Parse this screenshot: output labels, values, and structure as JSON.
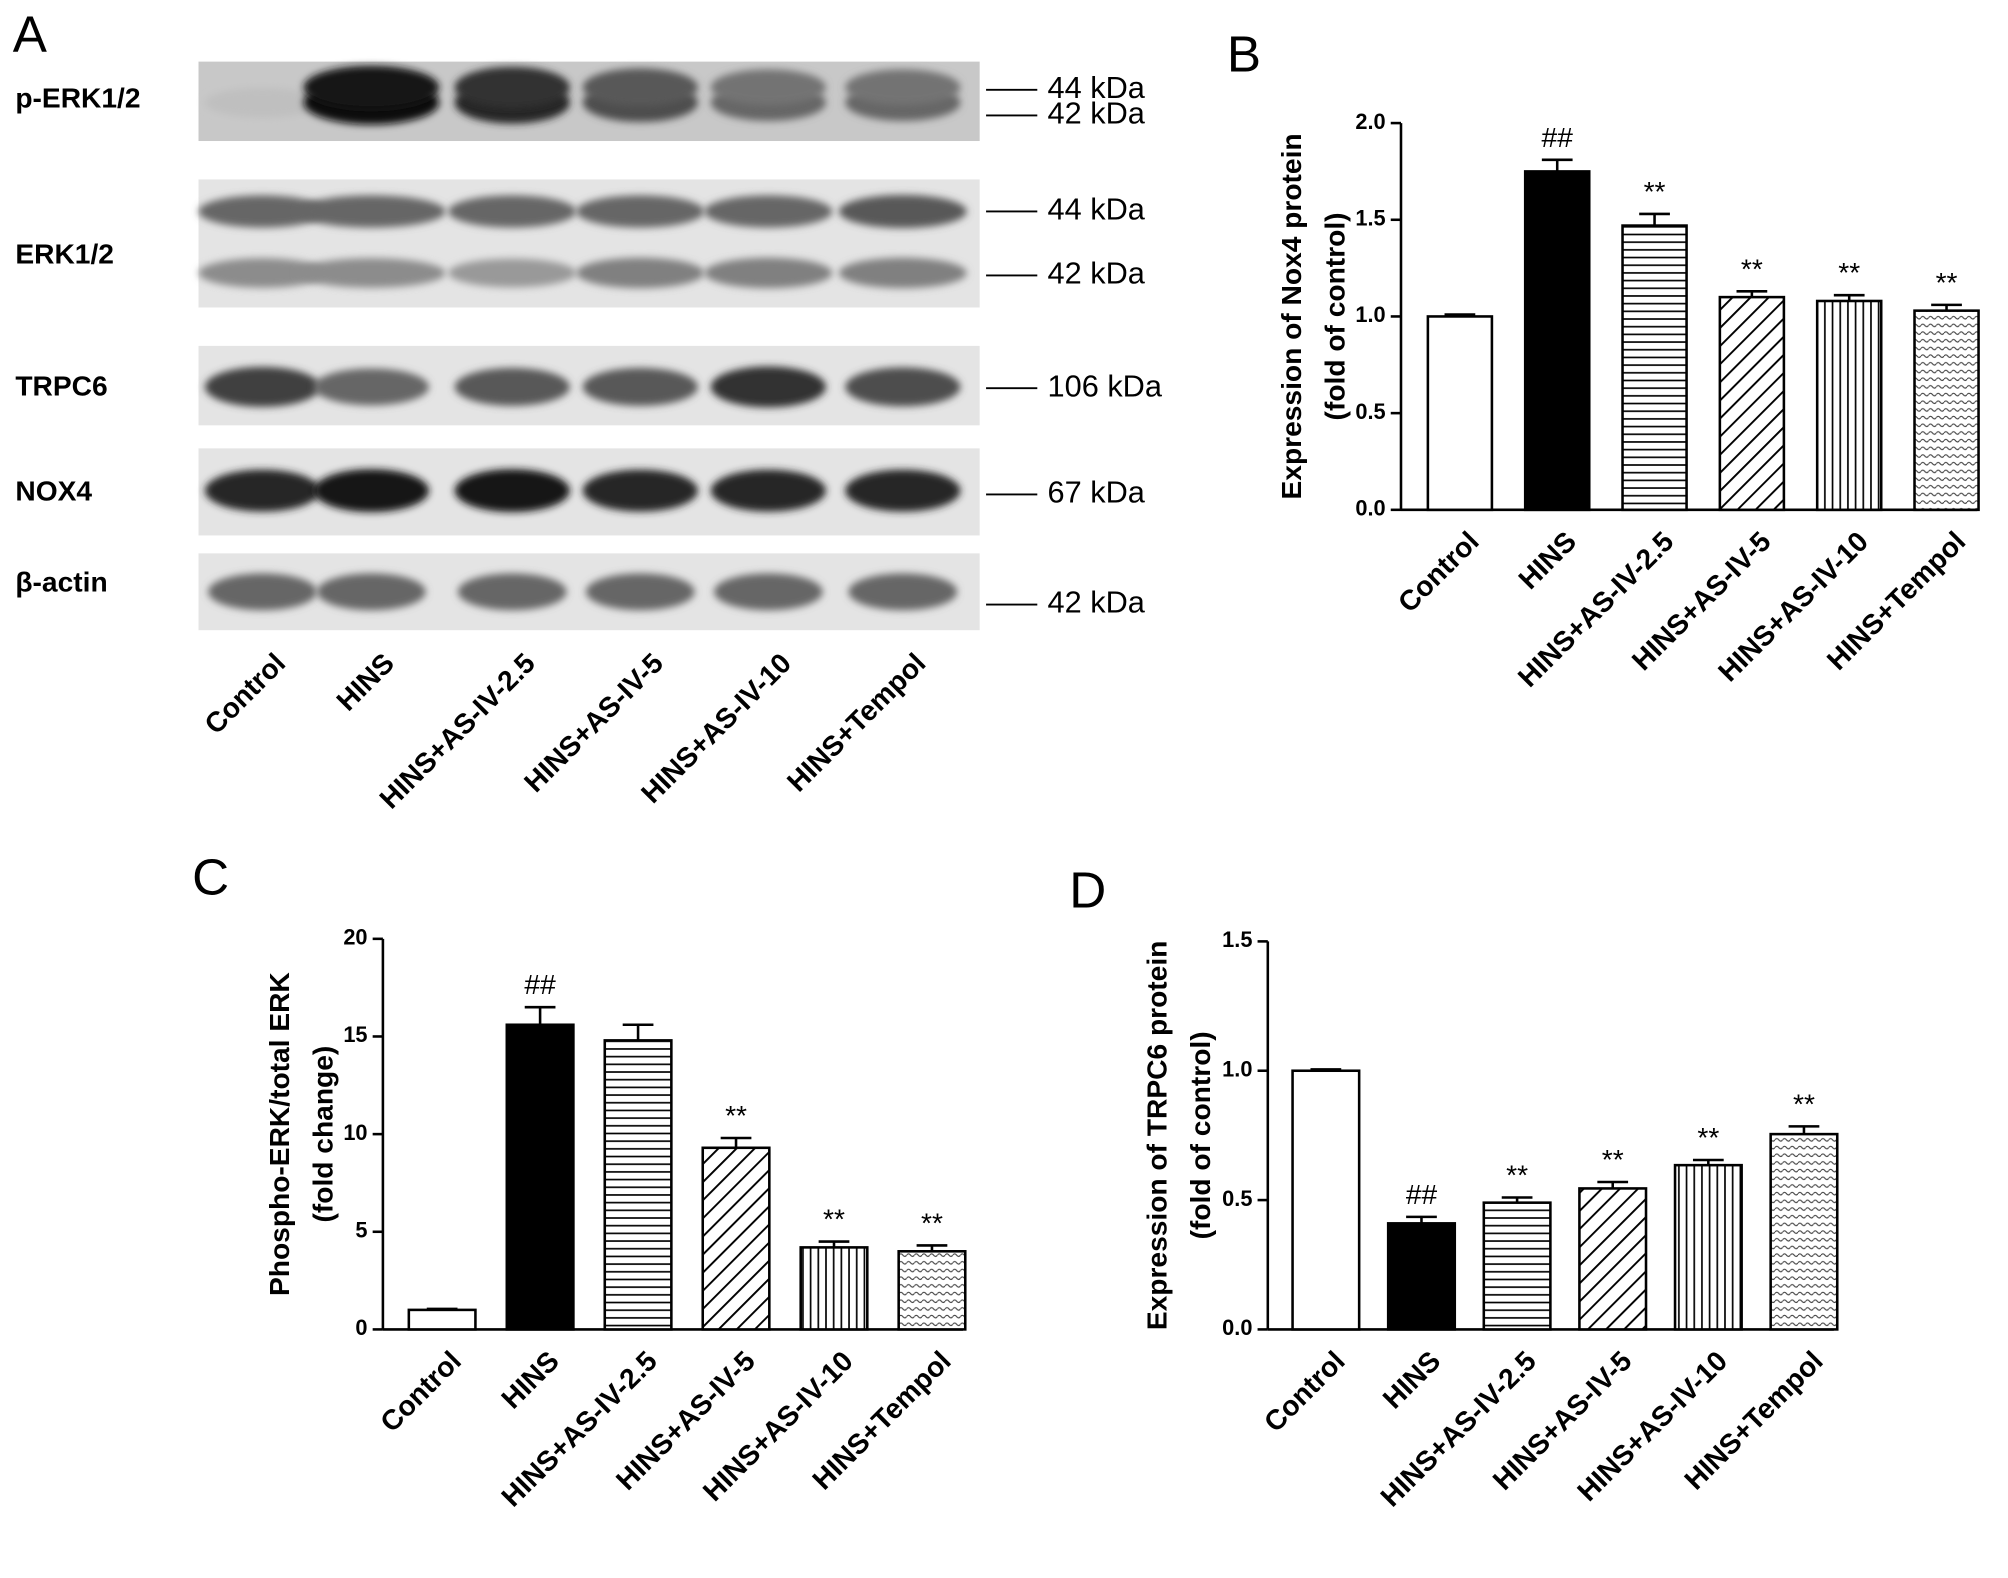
{
  "blot": {
    "panel": "A",
    "rows": [
      {
        "label": "p-ERK1/2",
        "markers": [
          "44 kDa",
          "42 kDa"
        ]
      },
      {
        "label": "ERK1/2",
        "markers": [
          "44 kDa",
          "42 kDa"
        ]
      },
      {
        "label": "TRPC6",
        "markers": [
          "106 kDa"
        ]
      },
      {
        "label": "NOX4",
        "markers": [
          "67 kDa"
        ]
      },
      {
        "label": "β-actin",
        "markers": [
          "42 kDa"
        ]
      }
    ],
    "lanes": [
      "Control",
      "HINS",
      "HINS+AS-IV-2.5",
      "HINS+AS-IV-5",
      "HINS+AS-IV-10",
      "HINS+Tempol"
    ]
  },
  "chart_data": [
    {
      "type": "bar",
      "panel": "B",
      "ylabel": [
        "Expression of Nox4 protein",
        "(fold of control)"
      ],
      "categories": [
        "Control",
        "HINS",
        "HINS+AS-IV-2.5",
        "HINS+AS-IV-5",
        "HINS+AS-IV-10",
        "HINS+Tempol"
      ],
      "values": [
        1.0,
        1.75,
        1.47,
        1.1,
        1.08,
        1.03
      ],
      "errors": [
        0.01,
        0.06,
        0.06,
        0.03,
        0.03,
        0.03
      ],
      "annotations": [
        null,
        "##",
        "**",
        "**",
        "**",
        "**"
      ],
      "patterns": [
        "none",
        "solid",
        "horizontal",
        "diagonal",
        "vertical",
        "dots"
      ],
      "ylim": [
        0,
        2.0
      ],
      "yticks": [
        {
          "value": 0,
          "label": "0.0"
        },
        {
          "value": 0.5,
          "label": "0.5"
        },
        {
          "value": 1.0,
          "label": "1.0"
        },
        {
          "value": 1.5,
          "label": "1.5"
        },
        {
          "value": 2.0,
          "label": "2.0"
        }
      ]
    },
    {
      "type": "bar",
      "panel": "C",
      "ylabel": [
        "Phospho-ERK/total ERK",
        "(fold change)"
      ],
      "categories": [
        "Control",
        "HINS",
        "HINS+AS-IV-2.5",
        "HINS+AS-IV-5",
        "HINS+AS-IV-10",
        "HINS+Tempol"
      ],
      "values": [
        1.0,
        15.6,
        14.8,
        9.3,
        4.2,
        4.0
      ],
      "errors": [
        0.05,
        0.9,
        0.8,
        0.5,
        0.3,
        0.3
      ],
      "annotations": [
        null,
        "##",
        null,
        "**",
        "**",
        "**"
      ],
      "patterns": [
        "none",
        "solid",
        "horizontal",
        "diagonal",
        "vertical",
        "dots"
      ],
      "ylim": [
        0,
        20
      ],
      "yticks": [
        0,
        5,
        10,
        15,
        20
      ]
    },
    {
      "type": "bar",
      "panel": "D",
      "ylabel": [
        "Expression of TRPC6 protein",
        "(fold of control)"
      ],
      "categories": [
        "Control",
        "HINS",
        "HINS+AS-IV-2.5",
        "HINS+AS-IV-5",
        "HINS+AS-IV-10",
        "HINS+Tempol"
      ],
      "values": [
        1.0,
        0.41,
        0.49,
        0.545,
        0.635,
        0.755
      ],
      "errors": [
        0.005,
        0.025,
        0.02,
        0.025,
        0.02,
        0.03
      ],
      "annotations": [
        null,
        "##",
        "**",
        "**",
        "**",
        "**"
      ],
      "patterns": [
        "none",
        "solid",
        "horizontal",
        "diagonal",
        "vertical",
        "dots"
      ],
      "ylim": [
        0,
        1.5
      ],
      "yticks": [
        {
          "value": 0,
          "label": "0.0"
        },
        {
          "value": 0.5,
          "label": "0.5"
        },
        {
          "value": 1.0,
          "label": "1.0"
        },
        {
          "value": 1.5,
          "label": "1.5"
        }
      ]
    }
  ]
}
